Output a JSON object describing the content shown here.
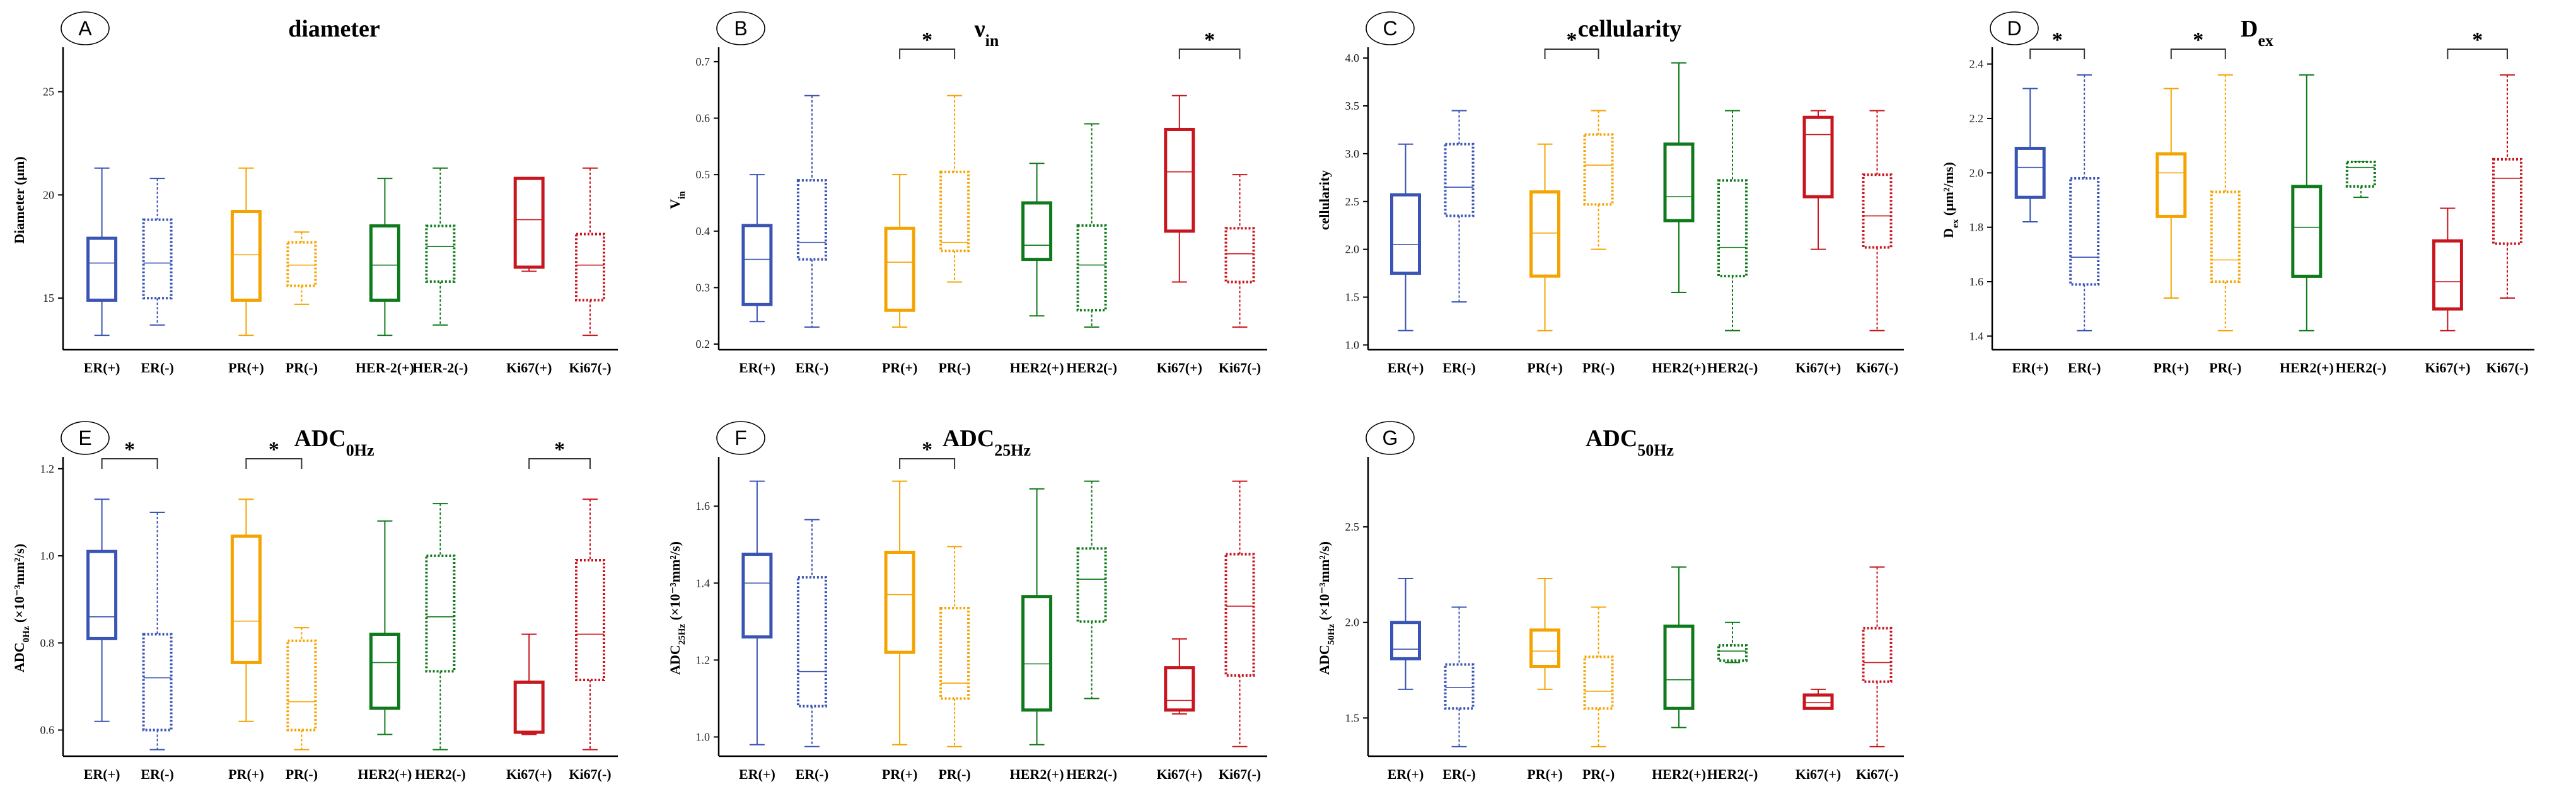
{
  "chart_data": [
    {
      "type": "box",
      "panel_letter": "A",
      "title": "diameter",
      "ylabel": "Diameter (μm)",
      "ylim": [
        12.5,
        27
      ],
      "yticks": [
        {
          "value": 15,
          "label": "15"
        },
        {
          "value": 20,
          "label": "20"
        },
        {
          "value": 25,
          "label": "25"
        }
      ],
      "categories": [
        "ER(+)",
        "ER(-)",
        "PR(+)",
        "PR(-)",
        "HER-2(+)",
        "HER-2(-)",
        "Ki67(+)",
        "Ki67(-)"
      ],
      "boxes": [
        {
          "min": 13.2,
          "q1": 14.9,
          "median": 16.7,
          "q3": 17.9,
          "max": 21.3
        },
        {
          "min": 13.7,
          "q1": 15.0,
          "median": 16.7,
          "q3": 18.8,
          "max": 20.8
        },
        {
          "min": 13.2,
          "q1": 14.9,
          "median": 17.1,
          "q3": 19.2,
          "max": 21.3
        },
        {
          "min": 14.7,
          "q1": 15.6,
          "median": 16.6,
          "q3": 17.7,
          "max": 18.2
        },
        {
          "min": 13.2,
          "q1": 14.9,
          "median": 16.6,
          "q3": 18.5,
          "max": 20.8
        },
        {
          "min": 13.7,
          "q1": 15.8,
          "median": 17.5,
          "q3": 18.5,
          "max": 21.3
        },
        {
          "min": 16.3,
          "q1": 16.5,
          "median": 18.8,
          "q3": 20.8,
          "max": 20.8
        },
        {
          "min": 13.2,
          "q1": 14.9,
          "median": 16.6,
          "q3": 18.1,
          "max": 21.3
        }
      ],
      "significance": []
    },
    {
      "type": "box",
      "panel_letter": "B",
      "title": "ν",
      "title_sub": "in",
      "ylabel": "V",
      "ylabel_sub": "in",
      "ylim": [
        0.19,
        0.72
      ],
      "yticks": [
        {
          "value": 0.2,
          "label": "0.2"
        },
        {
          "value": 0.3,
          "label": "0.3"
        },
        {
          "value": 0.4,
          "label": "0.4"
        },
        {
          "value": 0.5,
          "label": "0.5"
        },
        {
          "value": 0.6,
          "label": "0.6"
        },
        {
          "value": 0.7,
          "label": "0.7"
        }
      ],
      "categories": [
        "ER(+)",
        "ER(-)",
        "PR(+)",
        "PR(-)",
        "HER2(+)",
        "HER2(-)",
        "Ki67(+)",
        "Ki67(-)"
      ],
      "boxes": [
        {
          "min": 0.24,
          "q1": 0.27,
          "median": 0.35,
          "q3": 0.41,
          "max": 0.5
        },
        {
          "min": 0.23,
          "q1": 0.35,
          "median": 0.38,
          "q3": 0.49,
          "max": 0.64
        },
        {
          "min": 0.23,
          "q1": 0.26,
          "median": 0.345,
          "q3": 0.405,
          "max": 0.5
        },
        {
          "min": 0.31,
          "q1": 0.365,
          "median": 0.38,
          "q3": 0.505,
          "max": 0.64
        },
        {
          "min": 0.25,
          "q1": 0.35,
          "median": 0.375,
          "q3": 0.45,
          "max": 0.52
        },
        {
          "min": 0.23,
          "q1": 0.26,
          "median": 0.34,
          "q3": 0.41,
          "max": 0.59
        },
        {
          "min": 0.31,
          "q1": 0.4,
          "median": 0.505,
          "q3": 0.58,
          "max": 0.64
        },
        {
          "min": 0.23,
          "q1": 0.31,
          "median": 0.36,
          "q3": 0.405,
          "max": 0.5
        }
      ],
      "significance": [
        {
          "from": 2,
          "to": 3,
          "label": "*"
        },
        {
          "from": 6,
          "to": 7,
          "label": "*"
        }
      ]
    },
    {
      "type": "box",
      "panel_letter": "C",
      "title": "cellularity",
      "ylabel": "cellularity",
      "ylim": [
        0.95,
        4.08
      ],
      "yticks": [
        {
          "value": 1.0,
          "label": "1.0"
        },
        {
          "value": 1.5,
          "label": "1.5"
        },
        {
          "value": 2.0,
          "label": "2.0"
        },
        {
          "value": 2.5,
          "label": "2.5"
        },
        {
          "value": 3.0,
          "label": "3.0"
        },
        {
          "value": 3.5,
          "label": "3.5"
        },
        {
          "value": 4.0,
          "label": "4.0"
        }
      ],
      "categories": [
        "ER(+)",
        "ER(-)",
        "PR(+)",
        "PR(-)",
        "HER2(+)",
        "HER2(-)",
        "Ki67(+)",
        "Ki67(-)"
      ],
      "boxes": [
        {
          "min": 1.15,
          "q1": 1.75,
          "median": 2.05,
          "q3": 2.57,
          "max": 3.1
        },
        {
          "min": 1.45,
          "q1": 2.35,
          "median": 2.65,
          "q3": 3.1,
          "max": 3.45
        },
        {
          "min": 1.15,
          "q1": 1.72,
          "median": 2.17,
          "q3": 2.6,
          "max": 3.1
        },
        {
          "min": 2.0,
          "q1": 2.47,
          "median": 2.88,
          "q3": 3.2,
          "max": 3.45
        },
        {
          "min": 1.55,
          "q1": 2.3,
          "median": 2.55,
          "q3": 3.1,
          "max": 3.95
        },
        {
          "min": 1.15,
          "q1": 1.72,
          "median": 2.02,
          "q3": 2.72,
          "max": 3.45
        },
        {
          "min": 2.0,
          "q1": 2.55,
          "median": 3.2,
          "q3": 3.38,
          "max": 3.45
        },
        {
          "min": 1.15,
          "q1": 2.02,
          "median": 2.35,
          "q3": 2.78,
          "max": 3.45
        }
      ],
      "significance": [
        {
          "from": 2,
          "to": 3,
          "label": "*"
        }
      ]
    },
    {
      "type": "box",
      "panel_letter": "D",
      "title": "D",
      "title_sub": "ex",
      "ylabel": "D",
      "ylabel_sub": "ex",
      "ylabel_rest": " (μm²/ms)",
      "ylim": [
        1.35,
        2.45
      ],
      "yticks": [
        {
          "value": 1.4,
          "label": "1.4"
        },
        {
          "value": 1.6,
          "label": "1.6"
        },
        {
          "value": 1.8,
          "label": "1.8"
        },
        {
          "value": 2.0,
          "label": "2.0"
        },
        {
          "value": 2.2,
          "label": "2.2"
        },
        {
          "value": 2.4,
          "label": "2.4"
        }
      ],
      "categories": [
        "ER(+)",
        "ER(-)",
        "PR(+)",
        "PR(-)",
        "HER2(+)",
        "HER2(-)",
        "Ki67(+)",
        "Ki67(-)"
      ],
      "boxes": [
        {
          "min": 1.82,
          "q1": 1.91,
          "median": 2.02,
          "q3": 2.09,
          "max": 2.31
        },
        {
          "min": 1.42,
          "q1": 1.59,
          "median": 1.69,
          "q3": 1.98,
          "max": 2.36
        },
        {
          "min": 1.54,
          "q1": 1.84,
          "median": 2.0,
          "q3": 2.07,
          "max": 2.31
        },
        {
          "min": 1.42,
          "q1": 1.6,
          "median": 1.68,
          "q3": 1.93,
          "max": 2.36
        },
        {
          "min": 1.42,
          "q1": 1.62,
          "median": 1.8,
          "q3": 1.95,
          "max": 2.36
        },
        {
          "min": 1.91,
          "q1": 1.95,
          "median": 2.02,
          "q3": 2.04,
          "max": 2.04
        },
        {
          "min": 1.42,
          "q1": 1.5,
          "median": 1.6,
          "q3": 1.75,
          "max": 1.87
        },
        {
          "min": 1.54,
          "q1": 1.74,
          "median": 1.98,
          "q3": 2.05,
          "max": 2.36
        }
      ],
      "significance": [
        {
          "from": 0,
          "to": 1,
          "label": "*"
        },
        {
          "from": 2,
          "to": 3,
          "label": "*"
        },
        {
          "from": 6,
          "to": 7,
          "label": "*"
        }
      ]
    },
    {
      "type": "box",
      "panel_letter": "E",
      "title": "ADC",
      "title_sub": "0Hz",
      "ylabel": "ADC",
      "ylabel_sub": "0Hz",
      "ylabel_rest": " (×10⁻³mm²/s)",
      "ylim": [
        0.54,
        1.22
      ],
      "yticks": [
        {
          "value": 0.6,
          "label": "0.6"
        },
        {
          "value": 0.8,
          "label": "0.8"
        },
        {
          "value": 1.0,
          "label": "1.0"
        },
        {
          "value": 1.2,
          "label": "1.2"
        }
      ],
      "categories": [
        "ER(+)",
        "ER(-)",
        "PR(+)",
        "PR(-)",
        "HER2(+)",
        "HER2(-)",
        "Ki67(+)",
        "Ki67(-)"
      ],
      "boxes": [
        {
          "min": 0.62,
          "q1": 0.81,
          "median": 0.86,
          "q3": 1.01,
          "max": 1.13
        },
        {
          "min": 0.555,
          "q1": 0.6,
          "median": 0.72,
          "q3": 0.82,
          "max": 1.1
        },
        {
          "min": 0.62,
          "q1": 0.755,
          "median": 0.85,
          "q3": 1.045,
          "max": 1.13
        },
        {
          "min": 0.555,
          "q1": 0.6,
          "median": 0.665,
          "q3": 0.805,
          "max": 0.835
        },
        {
          "min": 0.59,
          "q1": 0.65,
          "median": 0.755,
          "q3": 0.82,
          "max": 1.08
        },
        {
          "min": 0.555,
          "q1": 0.735,
          "median": 0.86,
          "q3": 1.0,
          "max": 1.12
        },
        {
          "min": 0.59,
          "q1": 0.595,
          "median": 0.595,
          "q3": 0.71,
          "max": 0.82
        },
        {
          "min": 0.555,
          "q1": 0.715,
          "median": 0.82,
          "q3": 0.99,
          "max": 1.13
        }
      ],
      "significance": [
        {
          "from": 0,
          "to": 1,
          "label": "*"
        },
        {
          "from": 2,
          "to": 3,
          "label": "*"
        },
        {
          "from": 6,
          "to": 7,
          "label": "*"
        }
      ]
    },
    {
      "type": "box",
      "panel_letter": "F",
      "title": "ADC",
      "title_sub": "25Hz",
      "ylabel": "ADC",
      "ylabel_sub": "25Hz",
      "ylabel_rest": " (×10⁻³mm²/s)",
      "ylim": [
        0.95,
        1.72
      ],
      "yticks": [
        {
          "value": 1.0,
          "label": "1.0"
        },
        {
          "value": 1.2,
          "label": "1.2"
        },
        {
          "value": 1.4,
          "label": "1.4"
        },
        {
          "value": 1.6,
          "label": "1.6"
        }
      ],
      "categories": [
        "ER(+)",
        "ER(-)",
        "PR(+)",
        "PR(-)",
        "HER2(+)",
        "HER2(-)",
        "Ki67(+)",
        "Ki67(-)"
      ],
      "boxes": [
        {
          "min": 0.98,
          "q1": 1.26,
          "median": 1.4,
          "q3": 1.475,
          "max": 1.665
        },
        {
          "min": 0.975,
          "q1": 1.08,
          "median": 1.17,
          "q3": 1.415,
          "max": 1.565
        },
        {
          "min": 0.98,
          "q1": 1.22,
          "median": 1.37,
          "q3": 1.48,
          "max": 1.665
        },
        {
          "min": 0.975,
          "q1": 1.1,
          "median": 1.14,
          "q3": 1.335,
          "max": 1.495
        },
        {
          "min": 0.98,
          "q1": 1.07,
          "median": 1.19,
          "q3": 1.365,
          "max": 1.645
        },
        {
          "min": 1.1,
          "q1": 1.3,
          "median": 1.41,
          "q3": 1.49,
          "max": 1.665
        },
        {
          "min": 1.06,
          "q1": 1.07,
          "median": 1.095,
          "q3": 1.18,
          "max": 1.255
        },
        {
          "min": 0.975,
          "q1": 1.16,
          "median": 1.34,
          "q3": 1.475,
          "max": 1.665
        }
      ],
      "significance": [
        {
          "from": 2,
          "to": 3,
          "label": "*"
        }
      ]
    },
    {
      "type": "box",
      "panel_letter": "G",
      "title": "ADC",
      "title_sub": "50Hz",
      "ylabel": "ADC",
      "ylabel_sub": "50Hz",
      "ylabel_rest": " (×10⁻³mm²/s)",
      "ylim": [
        1.3,
        2.85
      ],
      "yticks": [
        {
          "value": 1.5,
          "label": "1.5"
        },
        {
          "value": 2.0,
          "label": "2.0"
        },
        {
          "value": 2.5,
          "label": "2.5"
        }
      ],
      "categories": [
        "ER(+)",
        "ER(-)",
        "PR(+)",
        "PR(-)",
        "HER2(+)",
        "HER2(-)",
        "Ki67(+)",
        "Ki67(-)"
      ],
      "boxes": [
        {
          "min": 1.65,
          "q1": 1.81,
          "median": 1.86,
          "q3": 2.0,
          "max": 2.23
        },
        {
          "min": 1.35,
          "q1": 1.55,
          "median": 1.66,
          "q3": 1.78,
          "max": 2.08
        },
        {
          "min": 1.65,
          "q1": 1.77,
          "median": 1.85,
          "q3": 1.96,
          "max": 2.23
        },
        {
          "min": 1.35,
          "q1": 1.55,
          "median": 1.64,
          "q3": 1.82,
          "max": 2.08
        },
        {
          "min": 1.45,
          "q1": 1.55,
          "median": 1.7,
          "q3": 1.98,
          "max": 2.29
        },
        {
          "min": 1.79,
          "q1": 1.8,
          "median": 1.85,
          "q3": 1.88,
          "max": 2.0
        },
        {
          "min": 1.55,
          "q1": 1.55,
          "median": 1.58,
          "q3": 1.62,
          "max": 1.65
        },
        {
          "min": 1.35,
          "q1": 1.69,
          "median": 1.79,
          "q3": 1.97,
          "max": 2.29
        }
      ],
      "significance": []
    }
  ],
  "group_colors": [
    "#3a54b4",
    "#3a54b4",
    "#f5a300",
    "#f5a300",
    "#0f7a1b",
    "#0f7a1b",
    "#c8161e",
    "#c8161e"
  ],
  "group_dashed": [
    false,
    true,
    false,
    true,
    false,
    true,
    false,
    true
  ]
}
